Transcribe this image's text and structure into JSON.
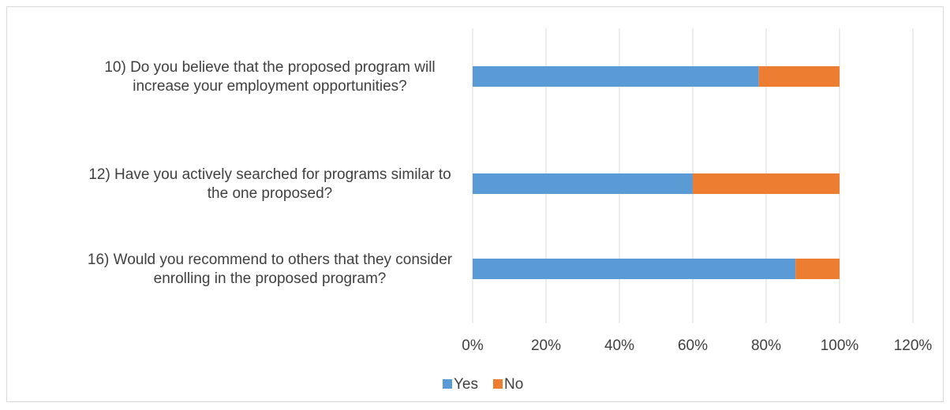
{
  "chart_data": {
    "type": "bar",
    "orientation": "horizontal",
    "stacked": true,
    "categories": [
      [
        "10) Do you believe that the proposed program will",
        "increase your employment opportunities?"
      ],
      [
        "12) Have you actively searched for programs similar to",
        "the one proposed?"
      ],
      [
        "16) Would you recommend to others that they consider",
        "enrolling in the proposed program?"
      ]
    ],
    "series": [
      {
        "name": "Yes",
        "color": "#5b9bd5",
        "values": [
          0.78,
          0.6,
          0.88
        ]
      },
      {
        "name": "No",
        "color": "#ed7d31",
        "values": [
          0.22,
          0.4,
          0.12
        ]
      }
    ],
    "xlim": [
      0,
      1.2
    ],
    "xticks": [
      {
        "value": 0,
        "label": "0%"
      },
      {
        "value": 0.2,
        "label": "20%"
      },
      {
        "value": 0.4,
        "label": "40%"
      },
      {
        "value": 0.6,
        "label": "60%"
      },
      {
        "value": 0.8,
        "label": "80%"
      },
      {
        "value": 1.0,
        "label": "100%"
      },
      {
        "value": 1.2,
        "label": "120%"
      }
    ],
    "grid": true,
    "legend_position": "bottom",
    "title": "",
    "xlabel": "",
    "ylabel": ""
  }
}
